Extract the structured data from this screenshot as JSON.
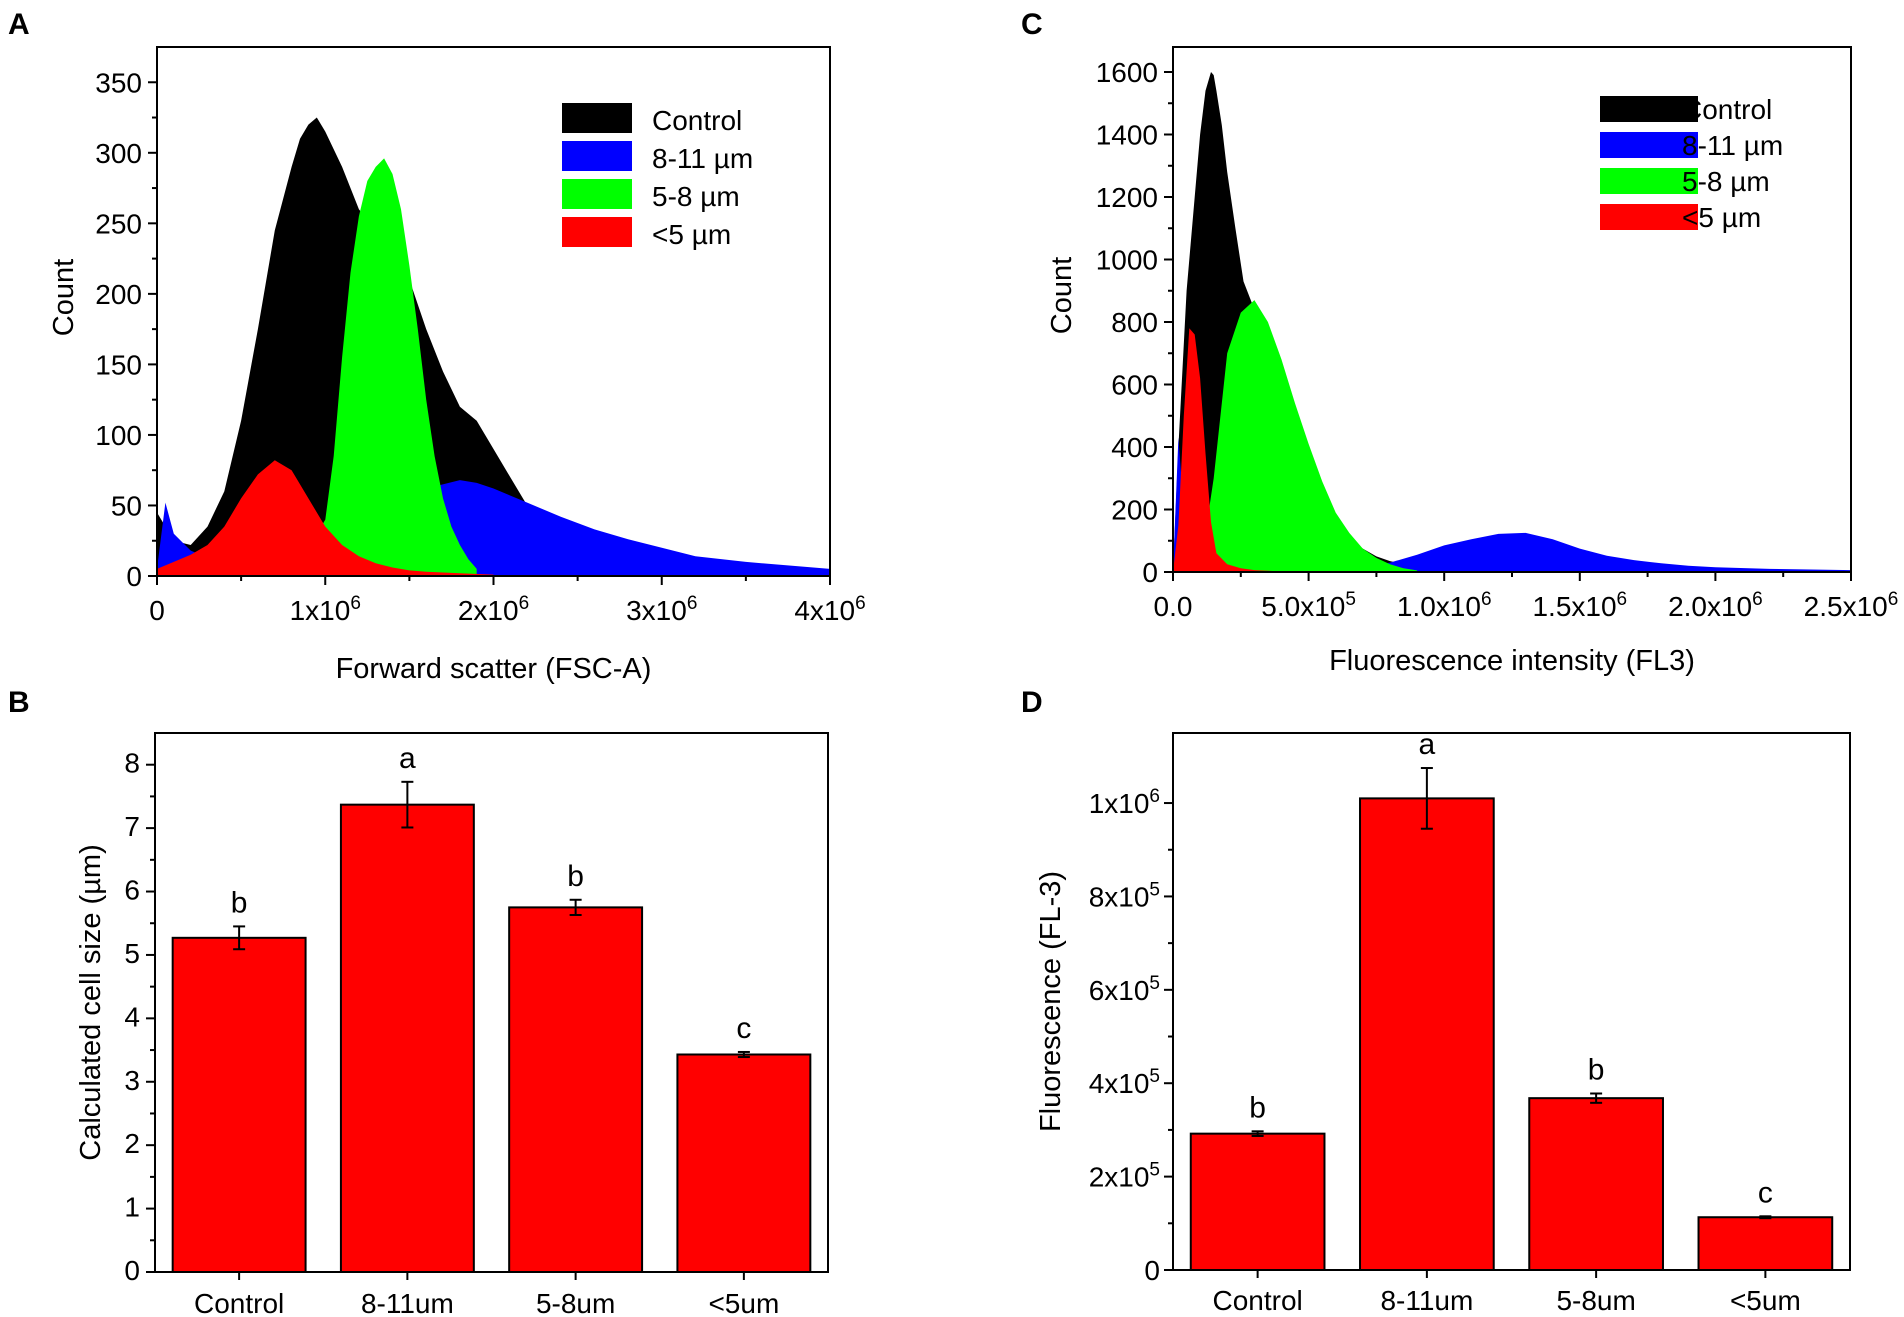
{
  "colors": {
    "control": "#000000",
    "g811": "#0000ff",
    "g58": "#00ff00",
    "g5": "#ff0000",
    "bar": "#ff0000"
  },
  "chart_data": [
    {
      "panel": "A",
      "type": "area",
      "title": "",
      "xlabel": "Forward scatter (FSC-A)",
      "ylabel": "Count",
      "xlim": [
        0,
        4000000
      ],
      "ylim": [
        0,
        375
      ],
      "xticks": [
        0,
        1000000,
        2000000,
        3000000,
        4000000
      ],
      "xtick_labels": [
        {
          "base": "0",
          "exp": ""
        },
        {
          "base": "1x10",
          "exp": "6"
        },
        {
          "base": "2x10",
          "exp": "6"
        },
        {
          "base": "3x10",
          "exp": "6"
        },
        {
          "base": "4x10",
          "exp": "6"
        }
      ],
      "yticks": [
        0,
        50,
        100,
        150,
        200,
        250,
        300,
        350
      ],
      "ytick_labels": [
        "0",
        "50",
        "100",
        "150",
        "200",
        "250",
        "300",
        "350"
      ],
      "legend": [
        "Control",
        "8-11 µm",
        "5-8 µm",
        "<5 µm"
      ],
      "legend_position": "top-right",
      "series": [
        {
          "name": "Control",
          "x": [
            0,
            100000,
            200000,
            300000,
            400000,
            500000,
            600000,
            700000,
            800000,
            850000,
            900000,
            950000,
            1000000,
            1100000,
            1200000,
            1300000,
            1400000,
            1500000,
            1600000,
            1700000,
            1800000,
            1900000,
            2000000,
            2100000,
            2200000,
            2300000,
            2400000,
            2600000,
            3000000,
            3500000,
            4000000
          ],
          "values": [
            45,
            25,
            22,
            35,
            60,
            110,
            175,
            245,
            290,
            310,
            320,
            325,
            315,
            290,
            260,
            245,
            235,
            210,
            175,
            145,
            120,
            110,
            90,
            70,
            50,
            38,
            30,
            24,
            14,
            8,
            4
          ]
        },
        {
          "name": "8-11 µm",
          "x": [
            0,
            50000,
            100000,
            200000,
            400000,
            600000,
            800000,
            1000000,
            1200000,
            1400000,
            1600000,
            1800000,
            1900000,
            2000000,
            2200000,
            2400000,
            2600000,
            2800000,
            3000000,
            3200000,
            3500000,
            4000000
          ],
          "values": [
            5,
            52,
            30,
            18,
            8,
            5,
            8,
            15,
            25,
            45,
            62,
            68,
            66,
            62,
            52,
            42,
            33,
            26,
            20,
            14,
            10,
            5
          ]
        },
        {
          "name": "5-8 µm",
          "x": [
            800000,
            900000,
            1000000,
            1050000,
            1100000,
            1150000,
            1200000,
            1250000,
            1300000,
            1350000,
            1400000,
            1450000,
            1500000,
            1550000,
            1600000,
            1650000,
            1700000,
            1750000,
            1800000,
            1850000,
            1900000
          ],
          "values": [
            8,
            20,
            40,
            85,
            155,
            215,
            255,
            280,
            290,
            296,
            285,
            260,
            220,
            175,
            125,
            85,
            55,
            35,
            22,
            12,
            5
          ]
        },
        {
          "name": "<5 µm",
          "x": [
            0,
            100000,
            200000,
            300000,
            400000,
            500000,
            600000,
            700000,
            800000,
            900000,
            1000000,
            1100000,
            1200000,
            1300000,
            1400000,
            1500000,
            1600000,
            1800000,
            2000000
          ],
          "values": [
            5,
            10,
            15,
            22,
            35,
            55,
            72,
            82,
            75,
            55,
            35,
            22,
            14,
            9,
            6,
            4,
            3,
            2,
            1
          ]
        }
      ]
    },
    {
      "panel": "C",
      "type": "area",
      "title": "",
      "xlabel": "Fluorescence intensity (FL3)",
      "ylabel": "Count",
      "xlim": [
        0,
        2500000
      ],
      "ylim": [
        0,
        1680
      ],
      "xticks": [
        0,
        500000,
        1000000,
        1500000,
        2000000,
        2500000
      ],
      "xtick_labels": [
        {
          "base": "0.0",
          "exp": ""
        },
        {
          "base": "5.0x10",
          "exp": "5"
        },
        {
          "base": "1.0x10",
          "exp": "6"
        },
        {
          "base": "1.5x10",
          "exp": "6"
        },
        {
          "base": "2.0x10",
          "exp": "6"
        },
        {
          "base": "2.5x10",
          "exp": "6"
        }
      ],
      "yticks": [
        0,
        200,
        400,
        600,
        800,
        1000,
        1200,
        1400,
        1600
      ],
      "ytick_labels": [
        "0",
        "200",
        "400",
        "600",
        "800",
        "1000",
        "1200",
        "1400",
        "1600"
      ],
      "legend": [
        "Control",
        "8-11 µm",
        "5-8 µm",
        "<5 µm"
      ],
      "legend_position": "top-right",
      "series": [
        {
          "name": "Control",
          "x": [
            0,
            20000,
            50000,
            80000,
            100000,
            120000,
            140000,
            150000,
            160000,
            180000,
            200000,
            230000,
            260000,
            300000,
            350000,
            400000,
            450000,
            500000,
            550000,
            600000,
            650000,
            700000,
            750000,
            800000,
            850000,
            900000
          ],
          "values": [
            0,
            400,
            900,
            1200,
            1400,
            1540,
            1600,
            1590,
            1540,
            1430,
            1280,
            1100,
            930,
            840,
            720,
            580,
            430,
            320,
            230,
            160,
            110,
            75,
            50,
            35,
            25,
            15
          ]
        },
        {
          "name": "8-11 µm",
          "x": [
            0,
            20000,
            50000,
            100000,
            200000,
            400000,
            600000,
            700000,
            800000,
            900000,
            1000000,
            1100000,
            1200000,
            1300000,
            1400000,
            1500000,
            1600000,
            1700000,
            1800000,
            1900000,
            2000000,
            2200000,
            2500000
          ],
          "values": [
            0,
            430,
            80,
            60,
            40,
            20,
            12,
            14,
            30,
            55,
            85,
            105,
            122,
            125,
            105,
            75,
            52,
            38,
            28,
            20,
            15,
            10,
            6
          ]
        },
        {
          "name": "5-8 µm",
          "x": [
            100000,
            150000,
            200000,
            250000,
            300000,
            350000,
            400000,
            450000,
            500000,
            550000,
            600000,
            650000,
            700000,
            750000,
            800000,
            850000,
            900000
          ],
          "values": [
            10,
            300,
            700,
            830,
            870,
            800,
            680,
            540,
            410,
            290,
            190,
            125,
            75,
            45,
            25,
            12,
            5
          ]
        },
        {
          "name": "<5 µm",
          "x": [
            0,
            20000,
            40000,
            60000,
            80000,
            100000,
            120000,
            140000,
            160000,
            200000,
            250000,
            300000,
            400000
          ],
          "values": [
            0,
            150,
            500,
            780,
            760,
            620,
            380,
            160,
            60,
            25,
            12,
            6,
            2
          ]
        }
      ]
    },
    {
      "panel": "B",
      "type": "bar",
      "title": "",
      "xlabel": "",
      "ylabel": "Calculated cell size (µm)",
      "ylim": [
        0,
        8.5
      ],
      "yticks": [
        0,
        1,
        2,
        3,
        4,
        5,
        6,
        7,
        8
      ],
      "ytick_labels": [
        "0",
        "1",
        "2",
        "3",
        "4",
        "5",
        "6",
        "7",
        "8"
      ],
      "categories": [
        "Control",
        "8-11um",
        "5-8um",
        "<5um"
      ],
      "values": [
        5.27,
        7.37,
        5.75,
        3.43
      ],
      "errors": [
        0.18,
        0.36,
        0.12,
        0.04
      ],
      "labels": [
        "b",
        "a",
        "b",
        "c"
      ]
    },
    {
      "panel": "D",
      "type": "bar",
      "title": "",
      "xlabel": "",
      "ylabel": "Fluorescence (FL-3)",
      "ylim": [
        0,
        1150000
      ],
      "yticks": [
        0,
        200000,
        400000,
        600000,
        800000,
        1000000
      ],
      "ytick_labels": [
        {
          "base": "0",
          "exp": ""
        },
        {
          "base": "2x10",
          "exp": "5"
        },
        {
          "base": "4x10",
          "exp": "5"
        },
        {
          "base": "6x10",
          "exp": "5"
        },
        {
          "base": "8x10",
          "exp": "5"
        },
        {
          "base": "1x10",
          "exp": "6"
        }
      ],
      "categories": [
        "Control",
        "8-11um",
        "5-8um",
        "<5um"
      ],
      "values": [
        292000,
        1010000,
        368000,
        113000
      ],
      "errors": [
        5000,
        65000,
        10000,
        2000
      ],
      "labels": [
        "b",
        "a",
        "b",
        "c"
      ]
    }
  ]
}
